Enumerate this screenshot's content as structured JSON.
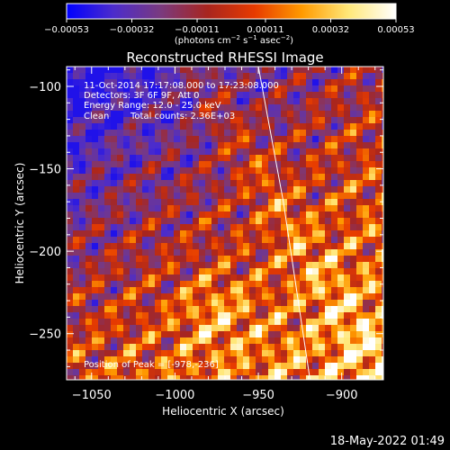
{
  "chart_data": {
    "type": "heatmap",
    "title": "Reconstructed RHESSI Image",
    "xlabel": "Heliocentric X (arcsec)",
    "ylabel": "Heliocentric Y (arcsec)",
    "xlim": [
      -1065,
      -875
    ],
    "ylim": [
      -278,
      -88
    ],
    "x_ticks": [
      -1050,
      -1000,
      -950,
      -900
    ],
    "x_tick_labels": [
      "−1050",
      "−1000",
      "−950",
      "−900"
    ],
    "y_ticks": [
      -100,
      -150,
      -200,
      -250
    ],
    "y_tick_labels": [
      "−100",
      "−150",
      "−200",
      "−250"
    ],
    "colorbar": {
      "min": -0.00053,
      "max": 0.00053,
      "ticks": [
        -0.00053,
        -0.00032,
        -0.00011,
        0.00011,
        0.00032,
        0.00053
      ],
      "tick_labels": [
        "−0.00053",
        "−0.00032",
        "−0.00011",
        "0.00011",
        "0.00032",
        "0.00053"
      ],
      "unit_parts": {
        "open": "(photons cm",
        "exp1": "−2",
        "s": " s",
        "exp2": "−1",
        "asec": " asec",
        "exp3": "−2",
        "close": ")"
      },
      "colors": [
        "#0000ff",
        "#4c2ccb",
        "#7a3a7f",
        "#a8251e",
        "#e73b00",
        "#ff9a00",
        "#ffe87a",
        "#ffffff"
      ]
    },
    "annotations": {
      "time_range": "11-Oct-2014 17:17:08.000 to 17:23:08.000",
      "detectors": "Detectors: 3F 6F 9F, Att 0",
      "energy_range": "Energy Range: 12.0 - 25.0 keV",
      "clean_label": "Clean",
      "total_counts": "Total counts: 2.36E+03",
      "peak": "Position of Peak = [-978,-236]"
    },
    "limb": {
      "points": [
        [
          -950,
          -88
        ],
        [
          -935,
          -170
        ],
        [
          -919,
          -278
        ]
      ]
    },
    "image": {
      "peak": [
        -978,
        -236
      ],
      "peak_value": 0.00053
    }
  },
  "footer": {
    "timestamp": "18-May-2022 01:49"
  }
}
